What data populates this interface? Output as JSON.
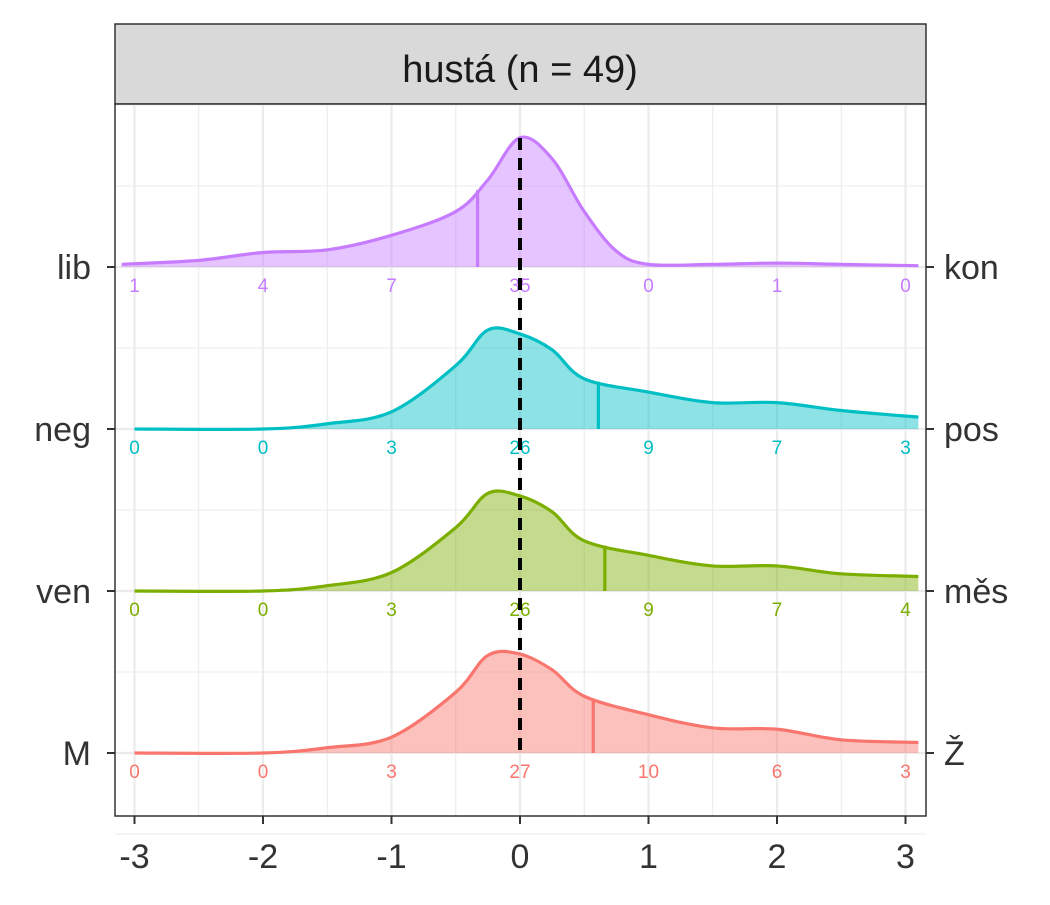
{
  "chart_data": {
    "type": "area",
    "title": "hustá (n = 49)",
    "xlabel": "",
    "ylabel": "",
    "xlim": [
      -3.1,
      3.1
    ],
    "x_ticks": [
      "-3",
      "-2",
      "-1",
      "0",
      "1",
      "2",
      "3"
    ],
    "x_tick_values": [
      -3,
      -2,
      -1,
      0,
      1,
      2,
      3
    ],
    "reference_line_x": 0,
    "grid": true,
    "series": [
      {
        "left_label": "lib",
        "right_label": "kon",
        "color": "#C77CFF",
        "mean": -0.33,
        "density": [
          [
            -3.1,
            0.02
          ],
          [
            -3,
            0.025
          ],
          [
            -2.5,
            0.05
          ],
          [
            -2,
            0.11
          ],
          [
            -1.5,
            0.13
          ],
          [
            -1,
            0.24
          ],
          [
            -0.5,
            0.42
          ],
          [
            -0.25,
            0.66
          ],
          [
            0,
            0.98
          ],
          [
            0.25,
            0.82
          ],
          [
            0.5,
            0.42
          ],
          [
            0.75,
            0.12
          ],
          [
            1,
            0.02
          ],
          [
            1.5,
            0.02
          ],
          [
            2,
            0.03
          ],
          [
            2.5,
            0.02
          ],
          [
            3.1,
            0.01
          ]
        ],
        "counts": [
          "1",
          "4",
          "7",
          "35",
          "0",
          "1",
          "0"
        ]
      },
      {
        "left_label": "neg",
        "right_label": "pos",
        "color": "#00BFC4",
        "mean": 0.61,
        "density": [
          [
            -3,
            0
          ],
          [
            -2,
            0
          ],
          [
            -1.5,
            0.04
          ],
          [
            -1,
            0.13
          ],
          [
            -0.5,
            0.48
          ],
          [
            -0.25,
            0.75
          ],
          [
            0,
            0.72
          ],
          [
            0.25,
            0.6
          ],
          [
            0.5,
            0.38
          ],
          [
            1,
            0.28
          ],
          [
            1.5,
            0.2
          ],
          [
            2,
            0.2
          ],
          [
            2.5,
            0.14
          ],
          [
            3.1,
            0.09
          ]
        ],
        "counts": [
          "0",
          "0",
          "3",
          "26",
          "9",
          "7",
          "3"
        ]
      },
      {
        "left_label": "ven",
        "right_label": "měs",
        "color": "#7CAE00",
        "mean": 0.66,
        "density": [
          [
            -3,
            0
          ],
          [
            -2,
            0
          ],
          [
            -1.5,
            0.04
          ],
          [
            -1,
            0.14
          ],
          [
            -0.5,
            0.48
          ],
          [
            -0.25,
            0.74
          ],
          [
            0,
            0.72
          ],
          [
            0.25,
            0.6
          ],
          [
            0.5,
            0.38
          ],
          [
            1,
            0.27
          ],
          [
            1.5,
            0.19
          ],
          [
            2,
            0.19
          ],
          [
            2.5,
            0.13
          ],
          [
            3.1,
            0.11
          ]
        ],
        "counts": [
          "0",
          "0",
          "3",
          "26",
          "9",
          "7",
          "4"
        ]
      },
      {
        "left_label": "M",
        "right_label": "Ž",
        "color": "#F8766D",
        "mean": 0.57,
        "density": [
          [
            -3,
            0
          ],
          [
            -2,
            0
          ],
          [
            -1.5,
            0.04
          ],
          [
            -1,
            0.12
          ],
          [
            -0.5,
            0.46
          ],
          [
            -0.25,
            0.74
          ],
          [
            0,
            0.75
          ],
          [
            0.25,
            0.63
          ],
          [
            0.5,
            0.43
          ],
          [
            1,
            0.29
          ],
          [
            1.5,
            0.19
          ],
          [
            2,
            0.18
          ],
          [
            2.5,
            0.1
          ],
          [
            3.1,
            0.08
          ]
        ],
        "counts": [
          "0",
          "0",
          "3",
          "27",
          "10",
          "6",
          "3"
        ]
      }
    ]
  }
}
